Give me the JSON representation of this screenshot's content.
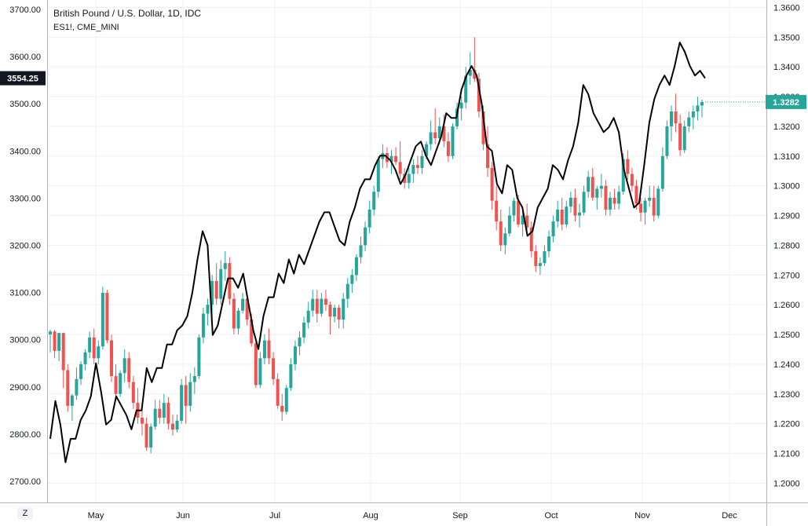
{
  "header": {
    "title": "British Pound / U.S. Dollar, 1D, IDC",
    "subtitle": "ES1!, CME_MINI"
  },
  "controls": {
    "axis_button": "Z"
  },
  "chart_data": {
    "type": "line",
    "title": "British Pound / U.S. Dollar, 1D, IDC",
    "x_labels": [
      "May",
      "Jun",
      "Jul",
      "Aug",
      "Sep",
      "Oct",
      "Nov",
      "Dec"
    ],
    "left_axis": {
      "ticks": [
        "3700.00",
        "3600.00",
        "3500.00",
        "3400.00",
        "3300.00",
        "3200.00",
        "3100.00",
        "3000.00",
        "2900.00",
        "2800.00",
        "2700.00"
      ],
      "range": [
        2655,
        3720
      ],
      "last_value_label": "3554.25",
      "last_value": 3554.25
    },
    "right_axis": {
      "ticks": [
        "1.3600",
        "1.3500",
        "1.3400",
        "1.3300",
        "1.3200",
        "1.3100",
        "1.3000",
        "1.2900",
        "1.2800",
        "1.2700",
        "1.2600",
        "1.2500",
        "1.2400",
        "1.2300",
        "1.2200",
        "1.2100",
        "1.2000"
      ],
      "range": [
        1.1935,
        1.3625
      ],
      "last_value_label": "1.3282",
      "last_value": 1.3282
    },
    "grid": true,
    "colors": {
      "up": "#26a69a",
      "down": "#ef5350",
      "es_line": "#000000",
      "last_price_bg": "#26a69a",
      "es_label_bg": "#131722"
    },
    "series": [
      {
        "name": "British Pound / U.S. Dollar",
        "type": "candlestick",
        "ohlc": [
          [
            1.25,
            1.2516,
            1.244,
            1.251
          ],
          [
            1.251,
            1.2515,
            1.242,
            1.2445
          ],
          [
            1.2445,
            1.2505,
            1.241,
            1.2505
          ],
          [
            1.2505,
            1.2505,
            1.232,
            1.238
          ],
          [
            1.238,
            1.24,
            1.224,
            1.226
          ],
          [
            1.226,
            1.23,
            1.221,
            1.2295
          ],
          [
            1.2295,
            1.239,
            1.228,
            1.235
          ],
          [
            1.235,
            1.241,
            1.233,
            1.24
          ],
          [
            1.24,
            1.245,
            1.238,
            1.244
          ],
          [
            1.244,
            1.251,
            1.242,
            1.249
          ],
          [
            1.249,
            1.252,
            1.24,
            1.242
          ],
          [
            1.242,
            1.248,
            1.24,
            1.246
          ],
          [
            1.246,
            1.266,
            1.245,
            1.264
          ],
          [
            1.264,
            1.265,
            1.247,
            1.248
          ],
          [
            1.248,
            1.25,
            1.234,
            1.236
          ],
          [
            1.236,
            1.24,
            1.228,
            1.23
          ],
          [
            1.23,
            1.238,
            1.229,
            1.237
          ],
          [
            1.237,
            1.245,
            1.234,
            1.242
          ],
          [
            1.242,
            1.244,
            1.232,
            1.234
          ],
          [
            1.234,
            1.236,
            1.225,
            1.227
          ],
          [
            1.227,
            1.232,
            1.22,
            1.222
          ],
          [
            1.222,
            1.226,
            1.216,
            1.22
          ],
          [
            1.22,
            1.222,
            1.211,
            1.212
          ],
          [
            1.212,
            1.22,
            1.21,
            1.219
          ],
          [
            1.219,
            1.228,
            1.218,
            1.225
          ],
          [
            1.225,
            1.228,
            1.22,
            1.222
          ],
          [
            1.222,
            1.23,
            1.22,
            1.227
          ],
          [
            1.227,
            1.229,
            1.218,
            1.22
          ],
          [
            1.22,
            1.223,
            1.216,
            1.218
          ],
          [
            1.218,
            1.223,
            1.217,
            1.221
          ],
          [
            1.221,
            1.235,
            1.22,
            1.233
          ],
          [
            1.233,
            1.236,
            1.22,
            1.226
          ],
          [
            1.226,
            1.237,
            1.224,
            1.234
          ],
          [
            1.234,
            1.239,
            1.23,
            1.236
          ],
          [
            1.236,
            1.25,
            1.235,
            1.249
          ],
          [
            1.249,
            1.259,
            1.247,
            1.257
          ],
          [
            1.257,
            1.262,
            1.253,
            1.26
          ],
          [
            1.26,
            1.27,
            1.256,
            1.268
          ],
          [
            1.268,
            1.274,
            1.26,
            1.262
          ],
          [
            1.262,
            1.275,
            1.26,
            1.272
          ],
          [
            1.272,
            1.278,
            1.268,
            1.274
          ],
          [
            1.274,
            1.276,
            1.26,
            1.262
          ],
          [
            1.262,
            1.264,
            1.25,
            1.252
          ],
          [
            1.252,
            1.259,
            1.25,
            1.258
          ],
          [
            1.258,
            1.264,
            1.257,
            1.262
          ],
          [
            1.262,
            1.263,
            1.253,
            1.255
          ],
          [
            1.255,
            1.257,
            1.246,
            1.247
          ],
          [
            1.247,
            1.248,
            1.232,
            1.233
          ],
          [
            1.233,
            1.244,
            1.232,
            1.242
          ],
          [
            1.242,
            1.25,
            1.24,
            1.248
          ],
          [
            1.248,
            1.252,
            1.24,
            1.242
          ],
          [
            1.242,
            1.244,
            1.233,
            1.235
          ],
          [
            1.235,
            1.237,
            1.225,
            1.226
          ],
          [
            1.226,
            1.23,
            1.221,
            1.224
          ],
          [
            1.224,
            1.233,
            1.223,
            1.232
          ],
          [
            1.232,
            1.242,
            1.231,
            1.24
          ],
          [
            1.24,
            1.248,
            1.238,
            1.246
          ],
          [
            1.246,
            1.251,
            1.243,
            1.249
          ],
          [
            1.249,
            1.256,
            1.247,
            1.254
          ],
          [
            1.254,
            1.261,
            1.252,
            1.258
          ],
          [
            1.258,
            1.265,
            1.256,
            1.262
          ],
          [
            1.262,
            1.265,
            1.254,
            1.257
          ],
          [
            1.257,
            1.264,
            1.256,
            1.262
          ],
          [
            1.262,
            1.265,
            1.258,
            1.26
          ],
          [
            1.26,
            1.261,
            1.25,
            1.256
          ],
          [
            1.256,
            1.26,
            1.254,
            1.259
          ],
          [
            1.259,
            1.26,
            1.252,
            1.255
          ],
          [
            1.255,
            1.264,
            1.252,
            1.262
          ],
          [
            1.262,
            1.269,
            1.259,
            1.267
          ],
          [
            1.267,
            1.272,
            1.264,
            1.27
          ],
          [
            1.27,
            1.277,
            1.268,
            1.276
          ],
          [
            1.276,
            1.283,
            1.274,
            1.28
          ],
          [
            1.28,
            1.288,
            1.278,
            1.286
          ],
          [
            1.286,
            1.295,
            1.284,
            1.292
          ],
          [
            1.292,
            1.3,
            1.29,
            1.298
          ],
          [
            1.298,
            1.31,
            1.296,
            1.309
          ],
          [
            1.309,
            1.314,
            1.306,
            1.311
          ],
          [
            1.311,
            1.313,
            1.306,
            1.308
          ],
          [
            1.308,
            1.312,
            1.304,
            1.31
          ],
          [
            1.31,
            1.313,
            1.307,
            1.308
          ],
          [
            1.308,
            1.315,
            1.302,
            1.304
          ],
          [
            1.304,
            1.306,
            1.299,
            1.301
          ],
          [
            1.301,
            1.306,
            1.299,
            1.304
          ],
          [
            1.304,
            1.309,
            1.301,
            1.307
          ],
          [
            1.307,
            1.31,
            1.304,
            1.306
          ],
          [
            1.306,
            1.312,
            1.304,
            1.31
          ],
          [
            1.31,
            1.315,
            1.309,
            1.314
          ],
          [
            1.314,
            1.322,
            1.312,
            1.318
          ],
          [
            1.318,
            1.326,
            1.314,
            1.316
          ],
          [
            1.316,
            1.323,
            1.314,
            1.32
          ],
          [
            1.32,
            1.324,
            1.313,
            1.315
          ],
          [
            1.315,
            1.318,
            1.308,
            1.31
          ],
          [
            1.31,
            1.321,
            1.309,
            1.32
          ],
          [
            1.32,
            1.328,
            1.319,
            1.326
          ],
          [
            1.326,
            1.33,
            1.322,
            1.328
          ],
          [
            1.328,
            1.34,
            1.326,
            1.337
          ],
          [
            1.337,
            1.345,
            1.334,
            1.339
          ],
          [
            1.339,
            1.35,
            1.335,
            1.336
          ],
          [
            1.336,
            1.338,
            1.323,
            1.325
          ],
          [
            1.325,
            1.327,
            1.312,
            1.314
          ],
          [
            1.314,
            1.32,
            1.303,
            1.306
          ],
          [
            1.306,
            1.308,
            1.292,
            1.295
          ],
          [
            1.295,
            1.3,
            1.285,
            1.288
          ],
          [
            1.288,
            1.292,
            1.278,
            1.28
          ],
          [
            1.28,
            1.286,
            1.277,
            1.284
          ],
          [
            1.284,
            1.293,
            1.283,
            1.29
          ],
          [
            1.29,
            1.296,
            1.288,
            1.295
          ],
          [
            1.295,
            1.297,
            1.286,
            1.287
          ],
          [
            1.287,
            1.292,
            1.283,
            1.29
          ],
          [
            1.29,
            1.294,
            1.285,
            1.286
          ],
          [
            1.286,
            1.288,
            1.276,
            1.278
          ],
          [
            1.278,
            1.28,
            1.271,
            1.273
          ],
          [
            1.273,
            1.276,
            1.27,
            1.274
          ],
          [
            1.274,
            1.28,
            1.273,
            1.278
          ],
          [
            1.278,
            1.285,
            1.276,
            1.283
          ],
          [
            1.283,
            1.29,
            1.281,
            1.288
          ],
          [
            1.288,
            1.295,
            1.286,
            1.292
          ],
          [
            1.292,
            1.296,
            1.285,
            1.287
          ],
          [
            1.287,
            1.295,
            1.286,
            1.293
          ],
          [
            1.293,
            1.298,
            1.291,
            1.296
          ],
          [
            1.296,
            1.299,
            1.288,
            1.29
          ],
          [
            1.29,
            1.294,
            1.286,
            1.291
          ],
          [
            1.291,
            1.3,
            1.29,
            1.298
          ],
          [
            1.298,
            1.305,
            1.296,
            1.303
          ],
          [
            1.303,
            1.306,
            1.295,
            1.296
          ],
          [
            1.296,
            1.3,
            1.292,
            1.299
          ],
          [
            1.299,
            1.304,
            1.296,
            1.3
          ],
          [
            1.3,
            1.302,
            1.29,
            1.292
          ],
          [
            1.292,
            1.298,
            1.29,
            1.296
          ],
          [
            1.296,
            1.299,
            1.292,
            1.294
          ],
          [
            1.294,
            1.3,
            1.292,
            1.298
          ],
          [
            1.298,
            1.311,
            1.297,
            1.309
          ],
          [
            1.309,
            1.312,
            1.302,
            1.304
          ],
          [
            1.304,
            1.306,
            1.298,
            1.3
          ],
          [
            1.3,
            1.302,
            1.292,
            1.294
          ],
          [
            1.294,
            1.296,
            1.288,
            1.291
          ],
          [
            1.291,
            1.296,
            1.287,
            1.295
          ],
          [
            1.295,
            1.3,
            1.293,
            1.296
          ],
          [
            1.296,
            1.3,
            1.288,
            1.29
          ],
          [
            1.29,
            1.3,
            1.289,
            1.299
          ],
          [
            1.299,
            1.313,
            1.298,
            1.31
          ],
          [
            1.31,
            1.322,
            1.309,
            1.32
          ],
          [
            1.32,
            1.327,
            1.315,
            1.325
          ],
          [
            1.325,
            1.331,
            1.318,
            1.321
          ],
          [
            1.321,
            1.324,
            1.31,
            1.312
          ],
          [
            1.312,
            1.322,
            1.311,
            1.32
          ],
          [
            1.32,
            1.325,
            1.318,
            1.323
          ],
          [
            1.323,
            1.327,
            1.319,
            1.325
          ],
          [
            1.325,
            1.33,
            1.322,
            1.327
          ],
          [
            1.327,
            1.329,
            1.323,
            1.3282
          ]
        ]
      },
      {
        "name": "ES1!, CME_MINI",
        "type": "line",
        "values": [
          2790,
          2870,
          2820,
          2740,
          2790,
          2790,
          2830,
          2850,
          2880,
          2950,
          2890,
          2820,
          2830,
          2880,
          2860,
          2840,
          2810,
          2850,
          2850,
          2940,
          2910,
          2940,
          2940,
          2990,
          2990,
          3020,
          3030,
          3050,
          3100,
          3170,
          3230,
          3200,
          3010,
          3030,
          3080,
          3130,
          3130,
          3110,
          3140,
          3080,
          3020,
          2980,
          3050,
          3090,
          3090,
          3140,
          3120,
          3170,
          3140,
          3180,
          3160,
          3190,
          3220,
          3250,
          3270,
          3270,
          3240,
          3210,
          3200,
          3250,
          3280,
          3320,
          3340,
          3340,
          3370,
          3390,
          3390,
          3380,
          3360,
          3330,
          3350,
          3380,
          3410,
          3420,
          3390,
          3370,
          3400,
          3430,
          3480,
          3470,
          3470,
          3530,
          3560,
          3580,
          3560,
          3500,
          3410,
          3400,
          3330,
          3310,
          3370,
          3360,
          3300,
          3280,
          3220,
          3230,
          3280,
          3300,
          3320,
          3370,
          3360,
          3340,
          3380,
          3410,
          3460,
          3540,
          3520,
          3480,
          3460,
          3440,
          3450,
          3470,
          3440,
          3360,
          3320,
          3280,
          3290,
          3370,
          3460,
          3510,
          3540,
          3560,
          3540,
          3580,
          3630,
          3610,
          3580,
          3560,
          3570,
          3554.25
        ]
      }
    ]
  }
}
